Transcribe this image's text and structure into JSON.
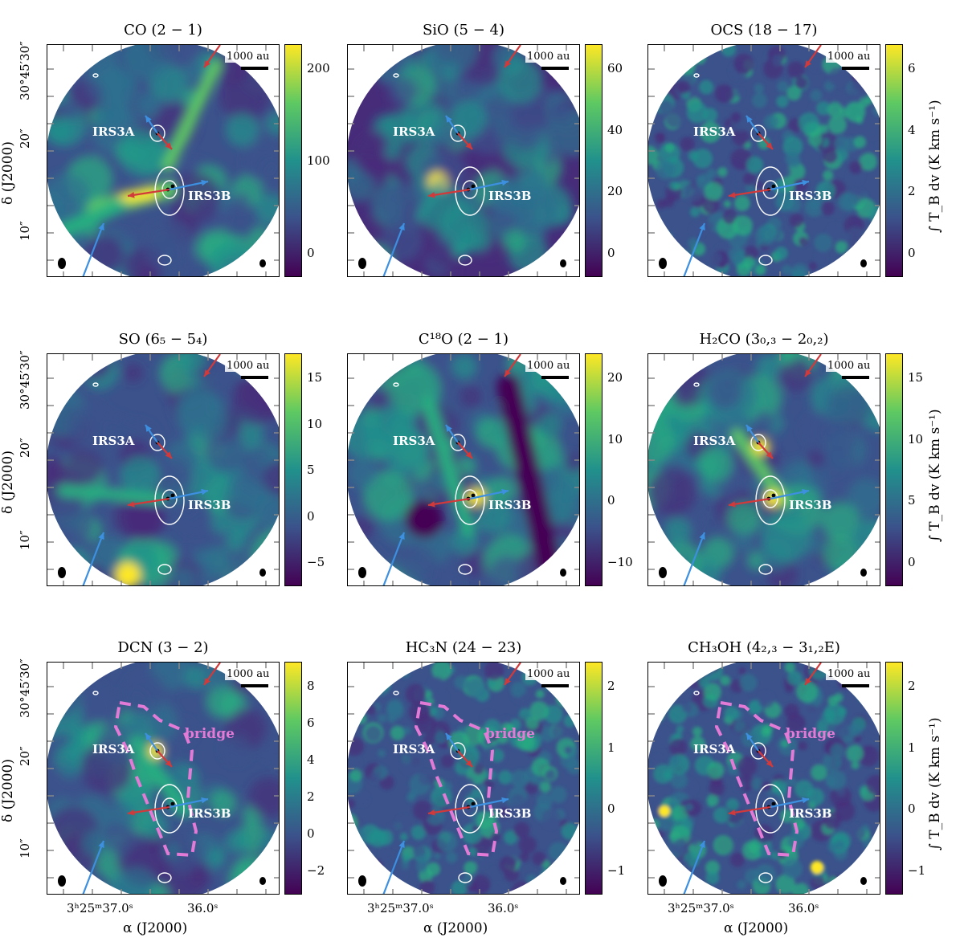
{
  "panels": [
    {
      "title": "CO (2 − 1)",
      "cbar_ticks": [
        "200",
        "100",
        "0"
      ],
      "scheme": "co"
    },
    {
      "title": "SiO (5 − 4)",
      "cbar_ticks": [
        "60",
        "40",
        "20",
        "0"
      ],
      "scheme": "sio"
    },
    {
      "title": "OCS (18 − 17)",
      "cbar_ticks": [
        "6",
        "4",
        "2",
        "0"
      ],
      "scheme": "noise"
    },
    {
      "title": "SO (6₅ − 5₄)",
      "cbar_ticks": [
        "15",
        "10",
        "5",
        "0",
        "−5"
      ],
      "scheme": "so"
    },
    {
      "title": "C¹⁸O (2 − 1)",
      "cbar_ticks": [
        "20",
        "10",
        "0",
        "−10"
      ],
      "scheme": "c18o"
    },
    {
      "title": "H₂CO (3₀,₃ − 2₀,₂)",
      "cbar_ticks": [
        "15",
        "10",
        "5",
        "0"
      ],
      "scheme": "h2co"
    },
    {
      "title": "DCN (3 − 2)",
      "cbar_ticks": [
        "8",
        "6",
        "4",
        "2",
        "0",
        "−2"
      ],
      "scheme": "dcn"
    },
    {
      "title": "HC₃N (24 − 23)",
      "cbar_ticks": [
        "2",
        "1",
        "0",
        "−1"
      ],
      "scheme": "noise"
    },
    {
      "title": "CH₃OH (4₂,₃ − 3₁,₂E)",
      "cbar_ticks": [
        "2",
        "1",
        "0",
        "−1"
      ],
      "scheme": "ch3oh"
    }
  ],
  "labels": {
    "irs3a": "IRS3A",
    "irs3b": "IRS3B",
    "scale": "1000 au",
    "bridge": "bridge",
    "ytick_top": "30°45′30″",
    "ytick_mid": "20″",
    "ytick_bot": "10″",
    "ylabel": "δ (J2000)",
    "xtick_left": "3ʰ25ᵐ37.0ˢ",
    "xtick_right": "36.0ˢ",
    "xlabel": "α (J2000)",
    "cbar_label": "∫ T_B dv (K km s⁻¹)"
  },
  "colors": {
    "outflow_blue": "#3d8fe0",
    "outflow_red": "#d2393a",
    "bridge": "#e37ad6",
    "contour": "#ffffff"
  }
}
